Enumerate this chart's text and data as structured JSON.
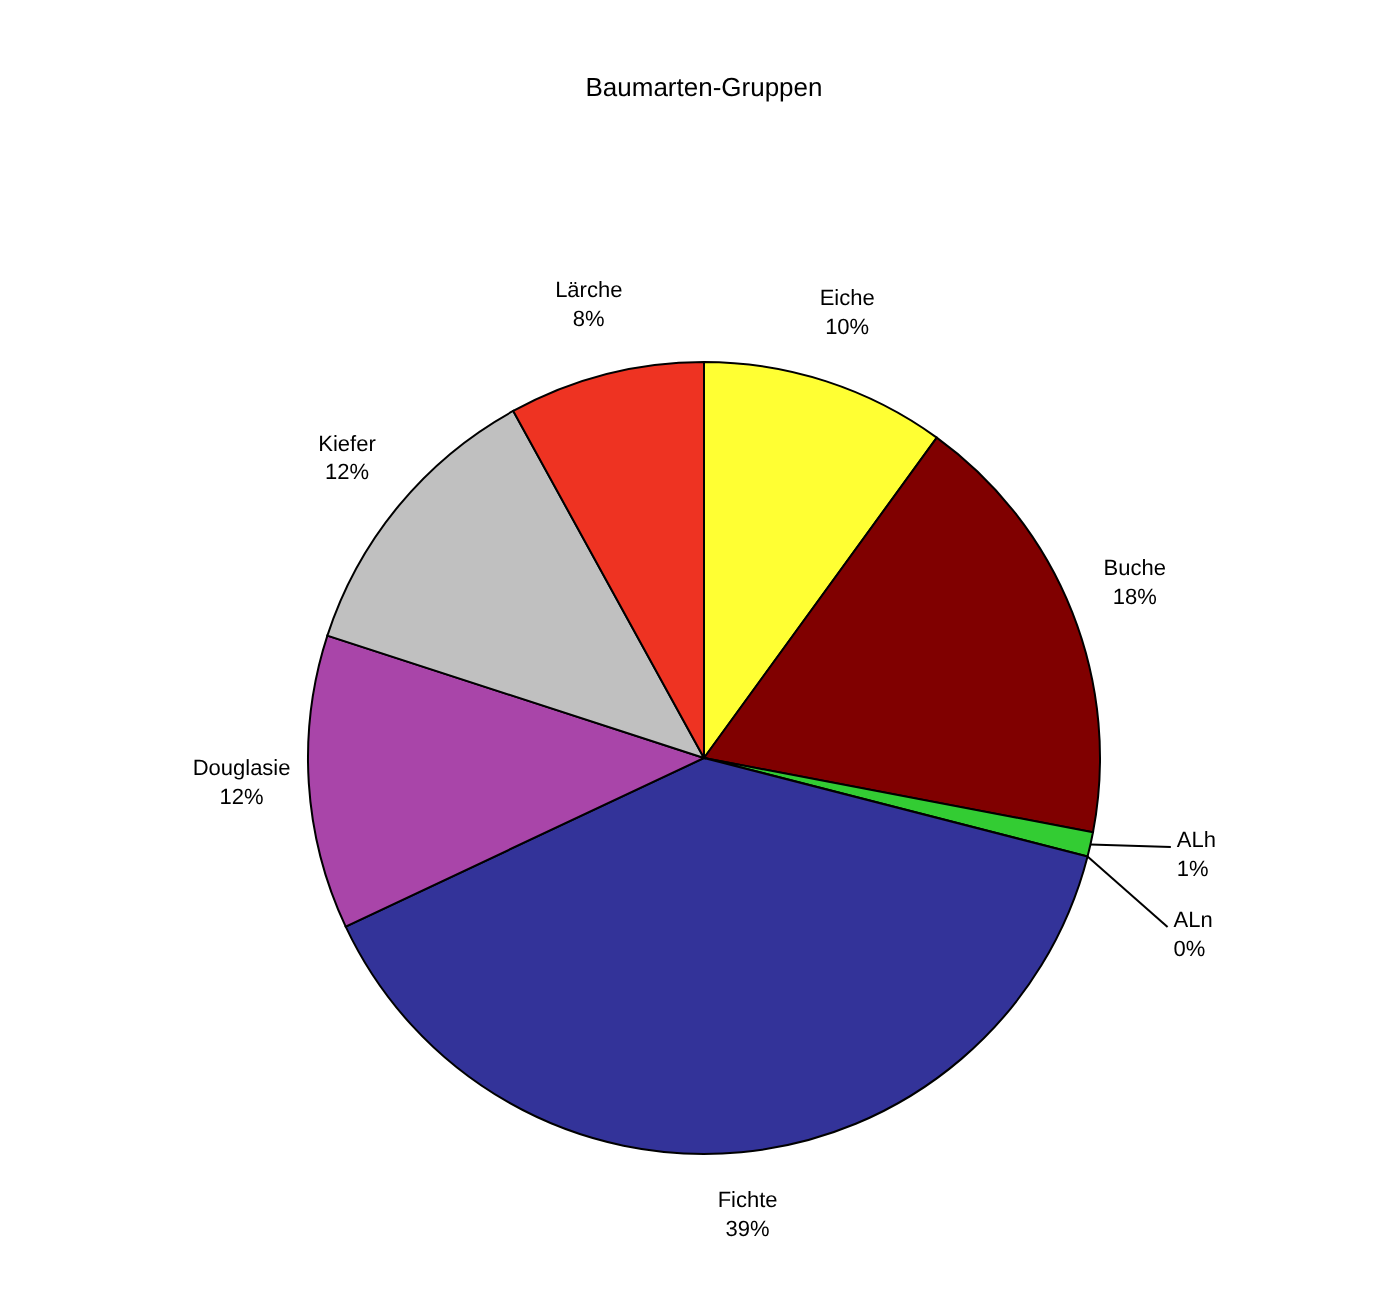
{
  "chart_data": {
    "type": "pie",
    "title": "Baumarten-Gruppen",
    "categories": [
      "Eiche",
      "Buche",
      "ALh",
      "ALn",
      "Fichte",
      "Douglasie",
      "Kiefer",
      "Lärche"
    ],
    "values": [
      10,
      18,
      1,
      0,
      39,
      12,
      12,
      8
    ],
    "value_labels": [
      "10%",
      "18%",
      "1%",
      "0%",
      "39%",
      "12%",
      "12%",
      "8%"
    ],
    "colors": [
      "#ffff33",
      "#800000",
      "#33cc33",
      null,
      "#333399",
      "#a945a9",
      "#c0c0c0",
      "#ee3322"
    ]
  }
}
